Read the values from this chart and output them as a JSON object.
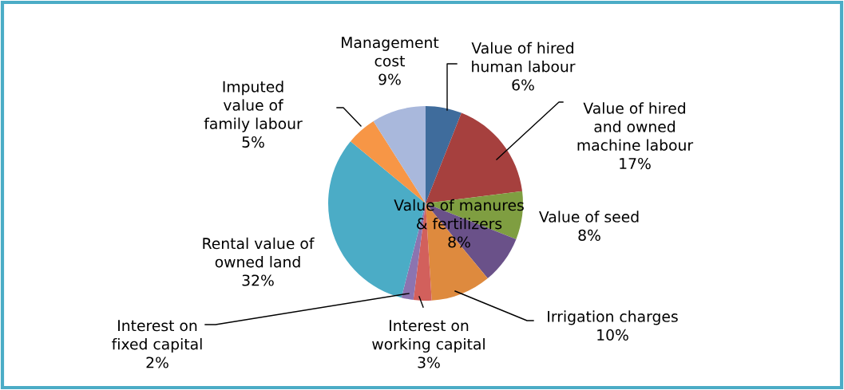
{
  "chart_data": {
    "type": "pie",
    "categories": [
      "Value of hired\nhuman labour",
      "Value of hired\nand owned\nmachine labour",
      "Value of seed",
      "Value of manures\n& fertilizers",
      "Irrigation charges",
      "Interest on\nworking capital",
      "Interest on\nfixed capital",
      "Rental value of\nowned land",
      "Imputed\nvalue of\nfamily labour",
      "Management\ncost"
    ],
    "values": [
      6,
      17,
      8,
      8,
      10,
      3,
      2,
      32,
      5,
      9
    ],
    "colors": [
      "#3f6c9c",
      "#a6403e",
      "#7f9e41",
      "#6a5189",
      "#de8a3e",
      "#d2605c",
      "#8c74b0",
      "#4bacc6",
      "#f79646",
      "#a9b8dc"
    ],
    "value_labels": [
      "6%",
      "17%",
      "8%",
      "8%",
      "10%",
      "3%",
      "2%",
      "32%",
      "5%",
      "9%"
    ]
  }
}
